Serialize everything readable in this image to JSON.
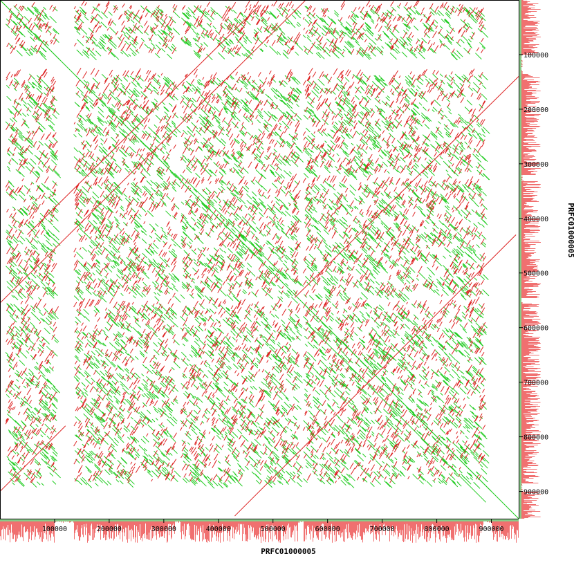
{
  "chart_data": {
    "type": "scatter",
    "title": "",
    "xlabel": "PRFC01000005",
    "ylabel": "PRFC01000005",
    "xlim": [
      0,
      950000
    ],
    "ylim": [
      0,
      950000
    ],
    "x_ticks": [
      "100000",
      "200000",
      "300000",
      "400000",
      "500000",
      "600000",
      "700000",
      "800000",
      "900000"
    ],
    "y_ticks": [
      "100000",
      "200000",
      "300000",
      "400000",
      "500000",
      "600000",
      "700000",
      "800000",
      "900000"
    ],
    "grid": false,
    "legend": "none",
    "series": [
      {
        "name": "",
        "color": "#22cc22",
        "segments": [
          [
            [
              0,
              0
            ],
            [
              950000,
              950000
            ]
          ],
          [
            [
              5000,
              5000
            ],
            [
              110000,
              110000
            ]
          ],
          [
            [
              200000,
              200000
            ],
            [
              520000,
              520000
            ]
          ],
          [
            [
              560000,
              560000
            ],
            [
              900000,
              900000
            ]
          ],
          [
            [
              330000,
              320000
            ],
            [
              520000,
              505000
            ]
          ],
          [
            [
              560000,
              590000
            ],
            [
              890000,
              920000
            ]
          ]
        ]
      },
      {
        "name": "",
        "color": "#dd2222",
        "segments": [
          [
            [
              0,
              555000
            ],
            [
              560000,
              0
            ]
          ],
          [
            [
              50000,
              430000
            ],
            [
              470000,
              15000
            ]
          ],
          [
            [
              430000,
              945000
            ],
            [
              945000,
              430000
            ]
          ],
          [
            [
              540000,
              545000
            ],
            [
              950000,
              140000
            ]
          ],
          [
            [
              0,
              900000
            ],
            [
              120000,
              780000
            ]
          ]
        ]
      }
    ],
    "block_boundaries": [
      10000,
      100000,
      135000,
      320000,
      330000,
      545000,
      555000,
      885000,
      900000
    ]
  }
}
